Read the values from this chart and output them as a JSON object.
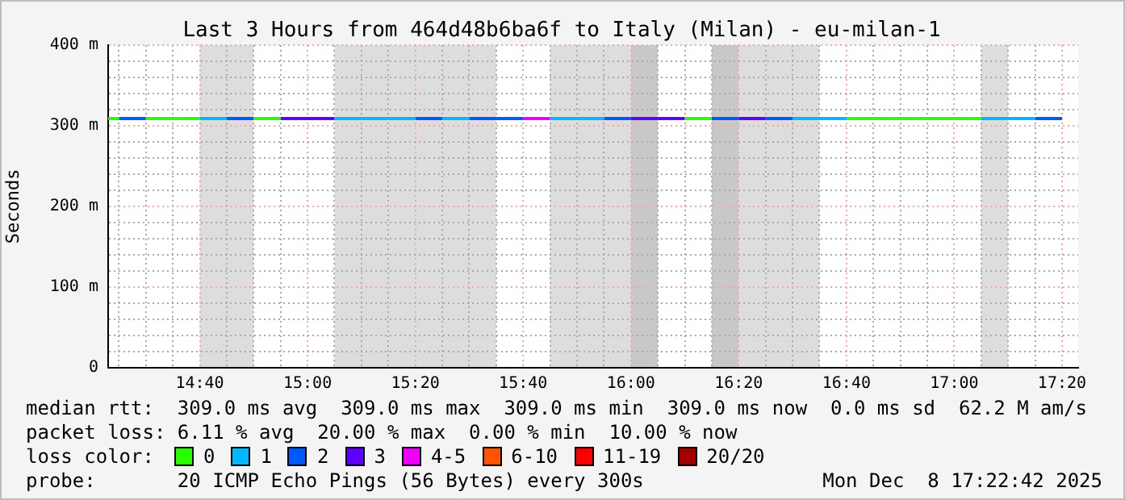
{
  "chart_data": {
    "type": "line",
    "title": "Last 3 Hours from 464d48b6ba6f to Italy (Milan) - eu-milan-1",
    "ylabel": "Seconds",
    "legend_title": "loss color:",
    "legend": "bottom",
    "marker": "none",
    "grid": true,
    "xlim": [
      14.3833,
      17.3833
    ],
    "ylim": [
      0,
      400
    ],
    "xticks": [
      {
        "value": 14.4167,
        "label": null
      },
      {
        "value": 14.5,
        "label": null
      },
      {
        "value": 14.5833,
        "label": null
      },
      {
        "value": 14.6667,
        "label": "14:40"
      },
      {
        "value": 14.75,
        "label": null
      },
      {
        "value": 14.8333,
        "label": null
      },
      {
        "value": 14.9167,
        "label": null
      },
      {
        "value": 15,
        "label": "15:00"
      },
      {
        "value": 15.0833,
        "label": null
      },
      {
        "value": 15.1667,
        "label": null
      },
      {
        "value": 15.25,
        "label": null
      },
      {
        "value": 15.3333,
        "label": "15:20"
      },
      {
        "value": 15.4167,
        "label": null
      },
      {
        "value": 15.5,
        "label": null
      },
      {
        "value": 15.5833,
        "label": null
      },
      {
        "value": 15.6667,
        "label": "15:40"
      },
      {
        "value": 15.75,
        "label": null
      },
      {
        "value": 15.8333,
        "label": null
      },
      {
        "value": 15.9167,
        "label": null
      },
      {
        "value": 16,
        "label": "16:00"
      },
      {
        "value": 16.0833,
        "label": null
      },
      {
        "value": 16.1667,
        "label": null
      },
      {
        "value": 16.25,
        "label": null
      },
      {
        "value": 16.3333,
        "label": "16:20"
      },
      {
        "value": 16.4167,
        "label": null
      },
      {
        "value": 16.5,
        "label": null
      },
      {
        "value": 16.5833,
        "label": null
      },
      {
        "value": 16.6667,
        "label": "16:40"
      },
      {
        "value": 16.75,
        "label": null
      },
      {
        "value": 16.8333,
        "label": null
      },
      {
        "value": 16.9167,
        "label": null
      },
      {
        "value": 17,
        "label": "17:00"
      },
      {
        "value": 17.0833,
        "label": null
      },
      {
        "value": 17.1667,
        "label": null
      },
      {
        "value": 17.25,
        "label": null
      },
      {
        "value": 17.3333,
        "label": "17:20"
      }
    ],
    "yticks": [
      {
        "value": 0,
        "label": "0"
      },
      {
        "value": 20,
        "label": null
      },
      {
        "value": 40,
        "label": null
      },
      {
        "value": 60,
        "label": null
      },
      {
        "value": 80,
        "label": null
      },
      {
        "value": 100,
        "label": "100 m"
      },
      {
        "value": 120,
        "label": null
      },
      {
        "value": 140,
        "label": null
      },
      {
        "value": 160,
        "label": null
      },
      {
        "value": 180,
        "label": null
      },
      {
        "value": 200,
        "label": "200 m"
      },
      {
        "value": 220,
        "label": null
      },
      {
        "value": 240,
        "label": null
      },
      {
        "value": 260,
        "label": null
      },
      {
        "value": 280,
        "label": null
      },
      {
        "value": 300,
        "label": "300 m"
      },
      {
        "value": 320,
        "label": null
      },
      {
        "value": 340,
        "label": null
      },
      {
        "value": 360,
        "label": null
      },
      {
        "value": 380,
        "label": null
      },
      {
        "value": 400,
        "label": "400 m"
      }
    ],
    "bands": [
      {
        "axis": "x",
        "from": 14.6667,
        "to": 14.8333,
        "color": "#dddddd"
      },
      {
        "axis": "x",
        "from": 15.0833,
        "to": 15.5833,
        "color": "#dddddd"
      },
      {
        "axis": "x",
        "from": 15.75,
        "to": 16,
        "color": "#dddddd"
      },
      {
        "axis": "x",
        "from": 16,
        "to": 16.0833,
        "color": "#c8c8c8"
      },
      {
        "axis": "x",
        "from": 16.25,
        "to": 16.3333,
        "color": "#c8c8c8"
      },
      {
        "axis": "x",
        "from": 16.3333,
        "to": 16.5833,
        "color": "#dddddd"
      },
      {
        "axis": "x",
        "from": 17.0833,
        "to": 17.1667,
        "color": "#dddddd"
      }
    ],
    "series": [
      {
        "name": "0",
        "color": "#26ff00",
        "x": [
          14.3833,
          14.4167,
          14.5,
          14.6667,
          14.8333,
          14.9167,
          16.1667,
          16.25,
          16.6667,
          17.0833
        ],
        "values": [
          309,
          309,
          309,
          309,
          309,
          309,
          309,
          309,
          309,
          309
        ]
      },
      {
        "name": "1",
        "color": "#00b8ff",
        "x": [
          14.6667,
          14.75,
          15.0833,
          15.3333,
          15.4167,
          15.5,
          15.75,
          15.9167,
          16.5,
          16.6667,
          17.0833,
          17.25
        ],
        "values": [
          309,
          309,
          309,
          309,
          309,
          309,
          309,
          309,
          309,
          309,
          309,
          309
        ]
      },
      {
        "name": "2",
        "color": "#0059ff",
        "x": [
          14.4167,
          14.5,
          14.75,
          14.8333,
          15.3333,
          15.4167,
          15.5,
          15.6667,
          15.9167,
          16,
          16.25,
          16.3333,
          16.4167,
          16.5,
          17.25,
          17.3333
        ],
        "values": [
          309,
          309,
          309,
          309,
          309,
          309,
          309,
          309,
          309,
          309,
          309,
          309,
          309,
          309,
          309,
          309
        ]
      },
      {
        "name": "3",
        "color": "#5e00ff",
        "x": [
          14.9167,
          15.0833,
          16,
          16.1667,
          16.3333,
          16.4167
        ],
        "values": [
          309,
          309,
          309,
          309,
          309,
          309
        ]
      },
      {
        "name": "4-5",
        "color": "#ee00ff",
        "x": [
          15.6667,
          15.75
        ],
        "values": [
          309,
          309
        ]
      },
      {
        "name": "6-10",
        "color": "#ff5500"
      },
      {
        "name": "11-19",
        "color": "#ff0000"
      },
      {
        "name": "20/20",
        "color": "#a10000"
      }
    ],
    "annotations": [
      "median rtt:  309.0 ms avg  309.0 ms max  309.0 ms min  309.0 ms now  0.0 ms sd  62.2 M am/s",
      "packet loss: 6.11 % avg  20.00 % max  0.00 % min  10.00 % now",
      "probe:       20 ICMP Echo Pings (56 Bytes) every 300s",
      "Mon Dec  8 17:22:42 2025"
    ]
  }
}
